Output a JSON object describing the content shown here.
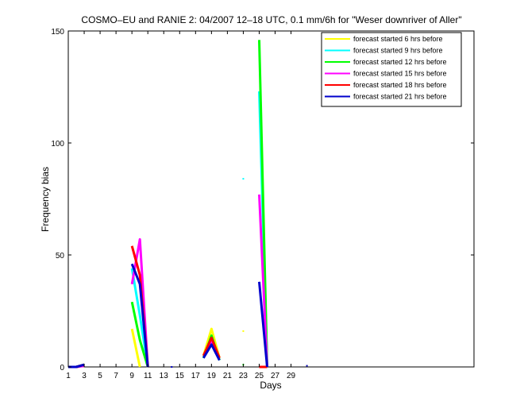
{
  "chart_data": {
    "type": "line",
    "title": "COSMO–EU and RANIE 2: 04/2007 12–18 UTC, 0.1 mm/6h for \"Weser downriver of Aller\"",
    "xlabel": "Days",
    "ylabel": "Frequency bias",
    "xlim": [
      1,
      52
    ],
    "ylim": [
      0,
      150
    ],
    "x_ticks": [
      1,
      3,
      5,
      7,
      9,
      11,
      13,
      15,
      17,
      19,
      21,
      23,
      25,
      27,
      29
    ],
    "y_ticks": [
      0,
      50,
      100,
      150
    ],
    "grid": false,
    "legend_position": "top-right",
    "series": [
      {
        "name": "forecast started 6 hrs before",
        "color": "#ffff00",
        "segments": [
          [
            [
              1,
              0
            ],
            [
              2,
              0
            ],
            [
              3,
              0.5
            ]
          ],
          [
            [
              9,
              17
            ],
            [
              10,
              0
            ]
          ],
          [
            [
              18,
              5
            ],
            [
              19,
              17
            ],
            [
              20,
              4
            ]
          ],
          [
            [
              23,
              16
            ]
          ],
          [
            [
              25,
              0
            ],
            [
              26,
              0
            ]
          ],
          [
            [
              31,
              0.5
            ]
          ]
        ]
      },
      {
        "name": "forecast started 9 hrs before",
        "color": "#00ffff",
        "segments": [
          [
            [
              1,
              0
            ],
            [
              2,
              0
            ],
            [
              3,
              1
            ]
          ],
          [
            [
              9,
              44
            ],
            [
              10,
              23
            ],
            [
              11,
              0
            ]
          ],
          [
            [
              18,
              4
            ],
            [
              19,
              12
            ],
            [
              20,
              3
            ]
          ],
          [
            [
              23,
              84
            ]
          ],
          [
            [
              25,
              123
            ],
            [
              26,
              0
            ]
          ]
        ]
      },
      {
        "name": "forecast started 12 hrs before",
        "color": "#00ff00",
        "segments": [
          [
            [
              1,
              0
            ],
            [
              2,
              0
            ],
            [
              3,
              1
            ]
          ],
          [
            [
              9,
              29
            ],
            [
              10,
              12
            ],
            [
              11,
              0
            ]
          ],
          [
            [
              18,
              4
            ],
            [
              19,
              14
            ],
            [
              20,
              3
            ]
          ],
          [
            [
              23,
              1
            ]
          ],
          [
            [
              25,
              146
            ],
            [
              26,
              0
            ]
          ]
        ]
      },
      {
        "name": "forecast started 15 hrs before",
        "color": "#ff00ff",
        "segments": [
          [
            [
              1,
              0
            ],
            [
              2,
              0
            ],
            [
              3,
              0.5
            ]
          ],
          [
            [
              9,
              37
            ],
            [
              10,
              57
            ],
            [
              11,
              0
            ]
          ],
          [
            [
              18,
              5
            ],
            [
              19,
              11
            ],
            [
              20,
              4
            ]
          ],
          [
            [
              25,
              77
            ],
            [
              26,
              0
            ]
          ]
        ]
      },
      {
        "name": "forecast started 18 hrs before",
        "color": "#ff0000",
        "segments": [
          [
            [
              1,
              0
            ],
            [
              2,
              0
            ],
            [
              3,
              1
            ]
          ],
          [
            [
              9,
              54
            ],
            [
              10,
              41
            ],
            [
              11,
              0
            ]
          ],
          [
            [
              18,
              5
            ],
            [
              19,
              13
            ],
            [
              20,
              4
            ]
          ],
          [
            [
              25,
              0
            ],
            [
              26,
              0
            ]
          ]
        ]
      },
      {
        "name": "forecast started 21 hrs before",
        "color": "#0000cc",
        "segments": [
          [
            [
              1,
              0
            ],
            [
              2,
              0
            ],
            [
              3,
              1
            ]
          ],
          [
            [
              9,
              46
            ],
            [
              10,
              37
            ],
            [
              11,
              0
            ]
          ],
          [
            [
              14,
              0
            ]
          ],
          [
            [
              18,
              4
            ],
            [
              19,
              10
            ],
            [
              20,
              3
            ]
          ],
          [
            [
              25,
              38
            ],
            [
              26,
              0
            ]
          ],
          [
            [
              31,
              0.5
            ]
          ]
        ]
      }
    ]
  }
}
